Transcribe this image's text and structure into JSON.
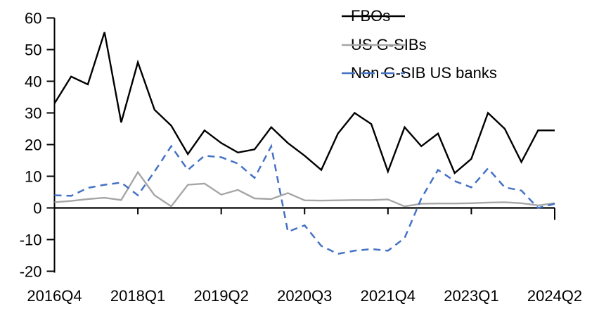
{
  "chart_data": {
    "type": "line",
    "title": "",
    "xlabel": "",
    "ylabel": "",
    "grid": false,
    "legend_position": "top-right",
    "ylim": [
      -20,
      60
    ],
    "y_ticks": [
      -20,
      -10,
      0,
      10,
      20,
      30,
      40,
      50,
      60
    ],
    "x_categories": [
      "2016Q4",
      "2017Q1",
      "2017Q2",
      "2017Q3",
      "2017Q4",
      "2018Q1",
      "2018Q2",
      "2018Q3",
      "2018Q4",
      "2019Q1",
      "2019Q2",
      "2019Q3",
      "2019Q4",
      "2020Q1",
      "2020Q2",
      "2020Q3",
      "2020Q4",
      "2021Q1",
      "2021Q2",
      "2021Q3",
      "2021Q4",
      "2022Q1",
      "2022Q2",
      "2022Q3",
      "2022Q4",
      "2023Q1",
      "2023Q2",
      "2023Q3",
      "2023Q4",
      "2024Q1",
      "2024Q2"
    ],
    "x_tick_labels": [
      "2016Q4",
      "2018Q1",
      "2019Q2",
      "2020Q3",
      "2021Q4",
      "2023Q1",
      "2024Q2"
    ],
    "x_tick_indices": [
      0,
      5,
      10,
      15,
      20,
      25,
      30
    ],
    "series": [
      {
        "name": "FBOs",
        "color": "#000000",
        "style": "solid",
        "values": [
          33,
          41.5,
          39,
          55.5,
          27,
          46,
          31,
          26,
          17,
          24.5,
          20.5,
          17.5,
          18.5,
          25.5,
          20.5,
          16.5,
          12,
          23.5,
          30,
          26.5,
          11.5,
          25.5,
          19.5,
          23.5,
          11,
          15.5,
          30,
          25,
          14.5,
          24.5,
          24.5
        ]
      },
      {
        "name": "US G-SIBs",
        "color": "#a6a6a6",
        "style": "solid",
        "values": [
          1.8,
          2.2,
          2.8,
          3.2,
          2.5,
          11.3,
          4,
          0.5,
          7.3,
          7.7,
          4.2,
          5.7,
          3,
          2.8,
          4.7,
          2.4,
          2.3,
          2.4,
          2.5,
          2.5,
          2.7,
          0.5,
          1.3,
          1.4,
          1.4,
          1.5,
          1.7,
          1.8,
          1.5,
          0.8,
          1.5
        ]
      },
      {
        "name": "Non G-SIB US banks",
        "color": "#4472c4",
        "style": "dashed",
        "values": [
          4,
          3.8,
          6.3,
          7.3,
          8,
          4,
          11.5,
          19.5,
          12,
          16.5,
          16,
          14,
          9.5,
          19.5,
          -7.5,
          -5.5,
          -12,
          -14.5,
          -13.5,
          -13,
          -13.5,
          -9.5,
          3,
          12,
          8.5,
          6.5,
          12.5,
          6.5,
          5.5,
          0,
          1.3
        ]
      }
    ],
    "axis_color": "#000000",
    "background": "#ffffff"
  }
}
